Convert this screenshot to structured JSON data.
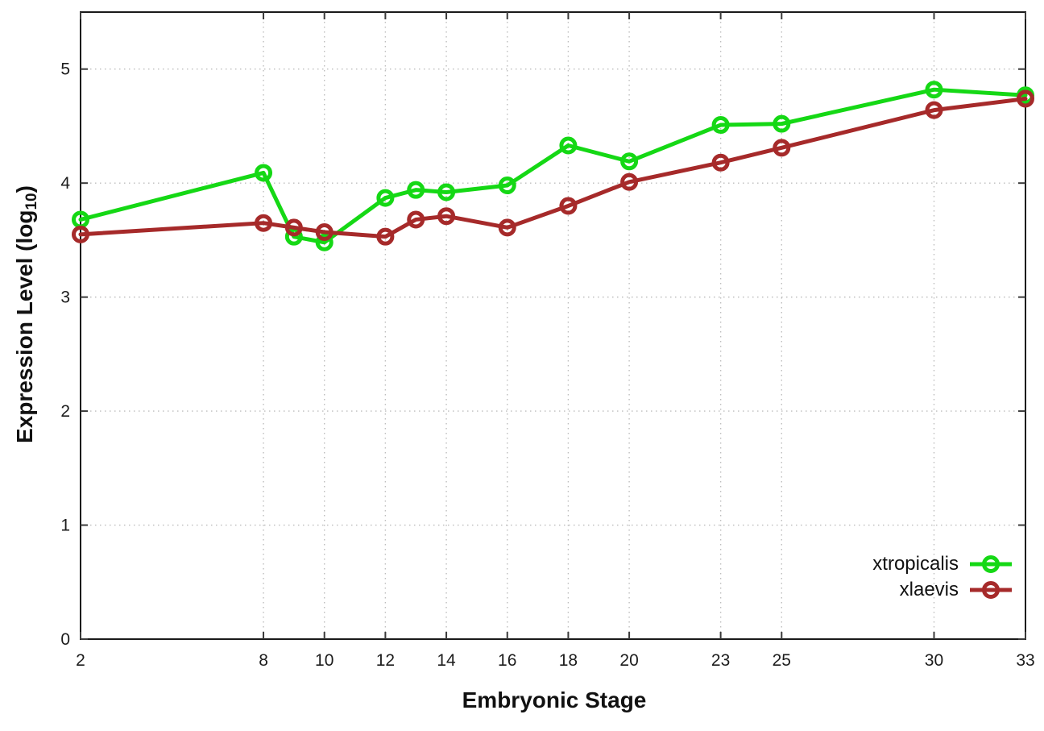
{
  "chart_data": {
    "type": "line",
    "title": "",
    "xlabel": "Embryonic Stage",
    "ylabel": "Expression Level (log10)",
    "ylabel_parts": {
      "main": "Expression Level (log",
      "sub": "10",
      "end": ")"
    },
    "x": [
      2,
      8,
      9,
      10,
      12,
      13,
      14,
      16,
      18,
      20,
      23,
      25,
      30,
      33
    ],
    "x_tick_labels": [
      2,
      8,
      10,
      12,
      14,
      16,
      18,
      20,
      23,
      25,
      30,
      33
    ],
    "y_tick_labels": [
      0,
      1,
      2,
      3,
      4,
      5
    ],
    "xlim": [
      2,
      33
    ],
    "ylim": [
      0,
      5.5
    ],
    "grid": true,
    "legend_position": "inside-right-lower",
    "series": [
      {
        "name": "xtropicalis",
        "color": "#15d815",
        "values": [
          3.68,
          4.09,
          3.53,
          3.48,
          3.87,
          3.94,
          3.92,
          3.98,
          4.33,
          4.19,
          4.51,
          4.52,
          4.82,
          4.77
        ]
      },
      {
        "name": "xlaevis",
        "color": "#a62a2a",
        "values": [
          3.55,
          3.65,
          3.61,
          3.57,
          3.53,
          3.68,
          3.71,
          3.61,
          3.8,
          4.01,
          4.18,
          4.31,
          4.64,
          4.74
        ]
      }
    ]
  },
  "style_colors": {
    "background": "#ffffff",
    "border": "#1a1a1a",
    "grid": "#bdbdbd",
    "tick": "#3a3a3a",
    "text": "#1c1c1c"
  }
}
